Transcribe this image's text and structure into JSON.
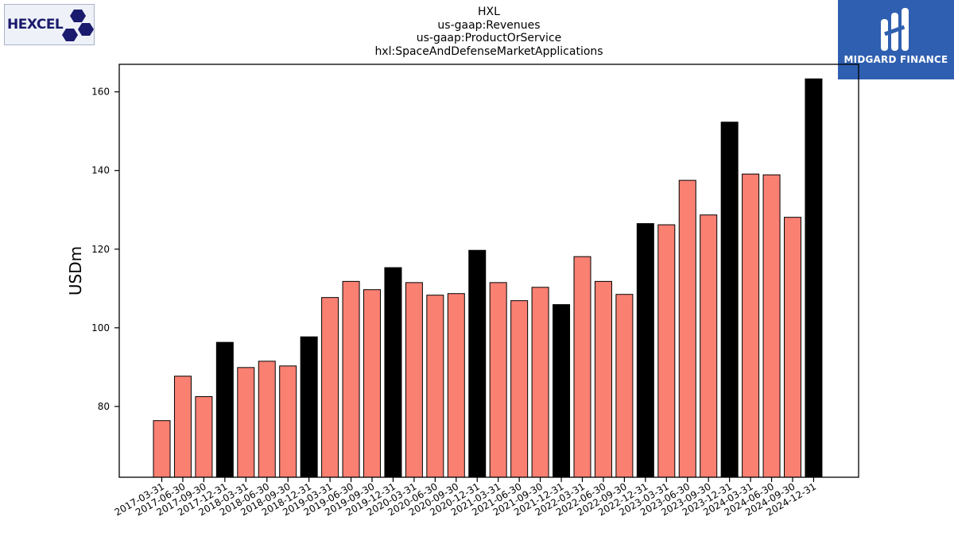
{
  "logos": {
    "left_text": "HEXCEL",
    "right_text": "MIDGARD FINANCE"
  },
  "chart_data": {
    "type": "bar",
    "title": [
      "HXL",
      "us-gaap:Revenues",
      "us-gaap:ProductOrService",
      "hxl:SpaceAndDefenseMarketApplications"
    ],
    "xlabel": "",
    "ylabel": "USDm",
    "ylim": [
      62,
      167
    ],
    "yticks": [
      80,
      100,
      120,
      140,
      160
    ],
    "categories": [
      "2017-03-31",
      "2017-06-30",
      "2017-09-30",
      "2017-12-31",
      "2018-03-31",
      "2018-06-30",
      "2018-09-30",
      "2018-12-31",
      "2019-03-31",
      "2019-06-30",
      "2019-09-30",
      "2019-12-31",
      "2020-03-31",
      "2020-06-30",
      "2020-09-30",
      "2020-12-31",
      "2021-03-31",
      "2021-06-30",
      "2021-09-30",
      "2021-12-31",
      "2022-03-31",
      "2022-06-30",
      "2022-09-30",
      "2022-12-31",
      "2023-03-31",
      "2023-06-30",
      "2023-09-30",
      "2023-12-31",
      "2024-03-31",
      "2024-06-30",
      "2024-09-30",
      "2024-12-31"
    ],
    "values": [
      76.4,
      87.7,
      82.5,
      96.3,
      89.9,
      91.5,
      90.3,
      97.7,
      107.7,
      111.8,
      109.7,
      115.3,
      111.5,
      108.3,
      108.7,
      119.7,
      111.5,
      106.9,
      110.3,
      105.9,
      118.1,
      111.8,
      108.5,
      126.5,
      126.2,
      137.5,
      128.7,
      152.3,
      139.1,
      138.9,
      128.1,
      163.3
    ],
    "colors": {
      "quarter": "#fa8072",
      "year_end": "#000000",
      "edge": "#000000"
    },
    "year_end_suffix": "12-31",
    "grid": false
  }
}
